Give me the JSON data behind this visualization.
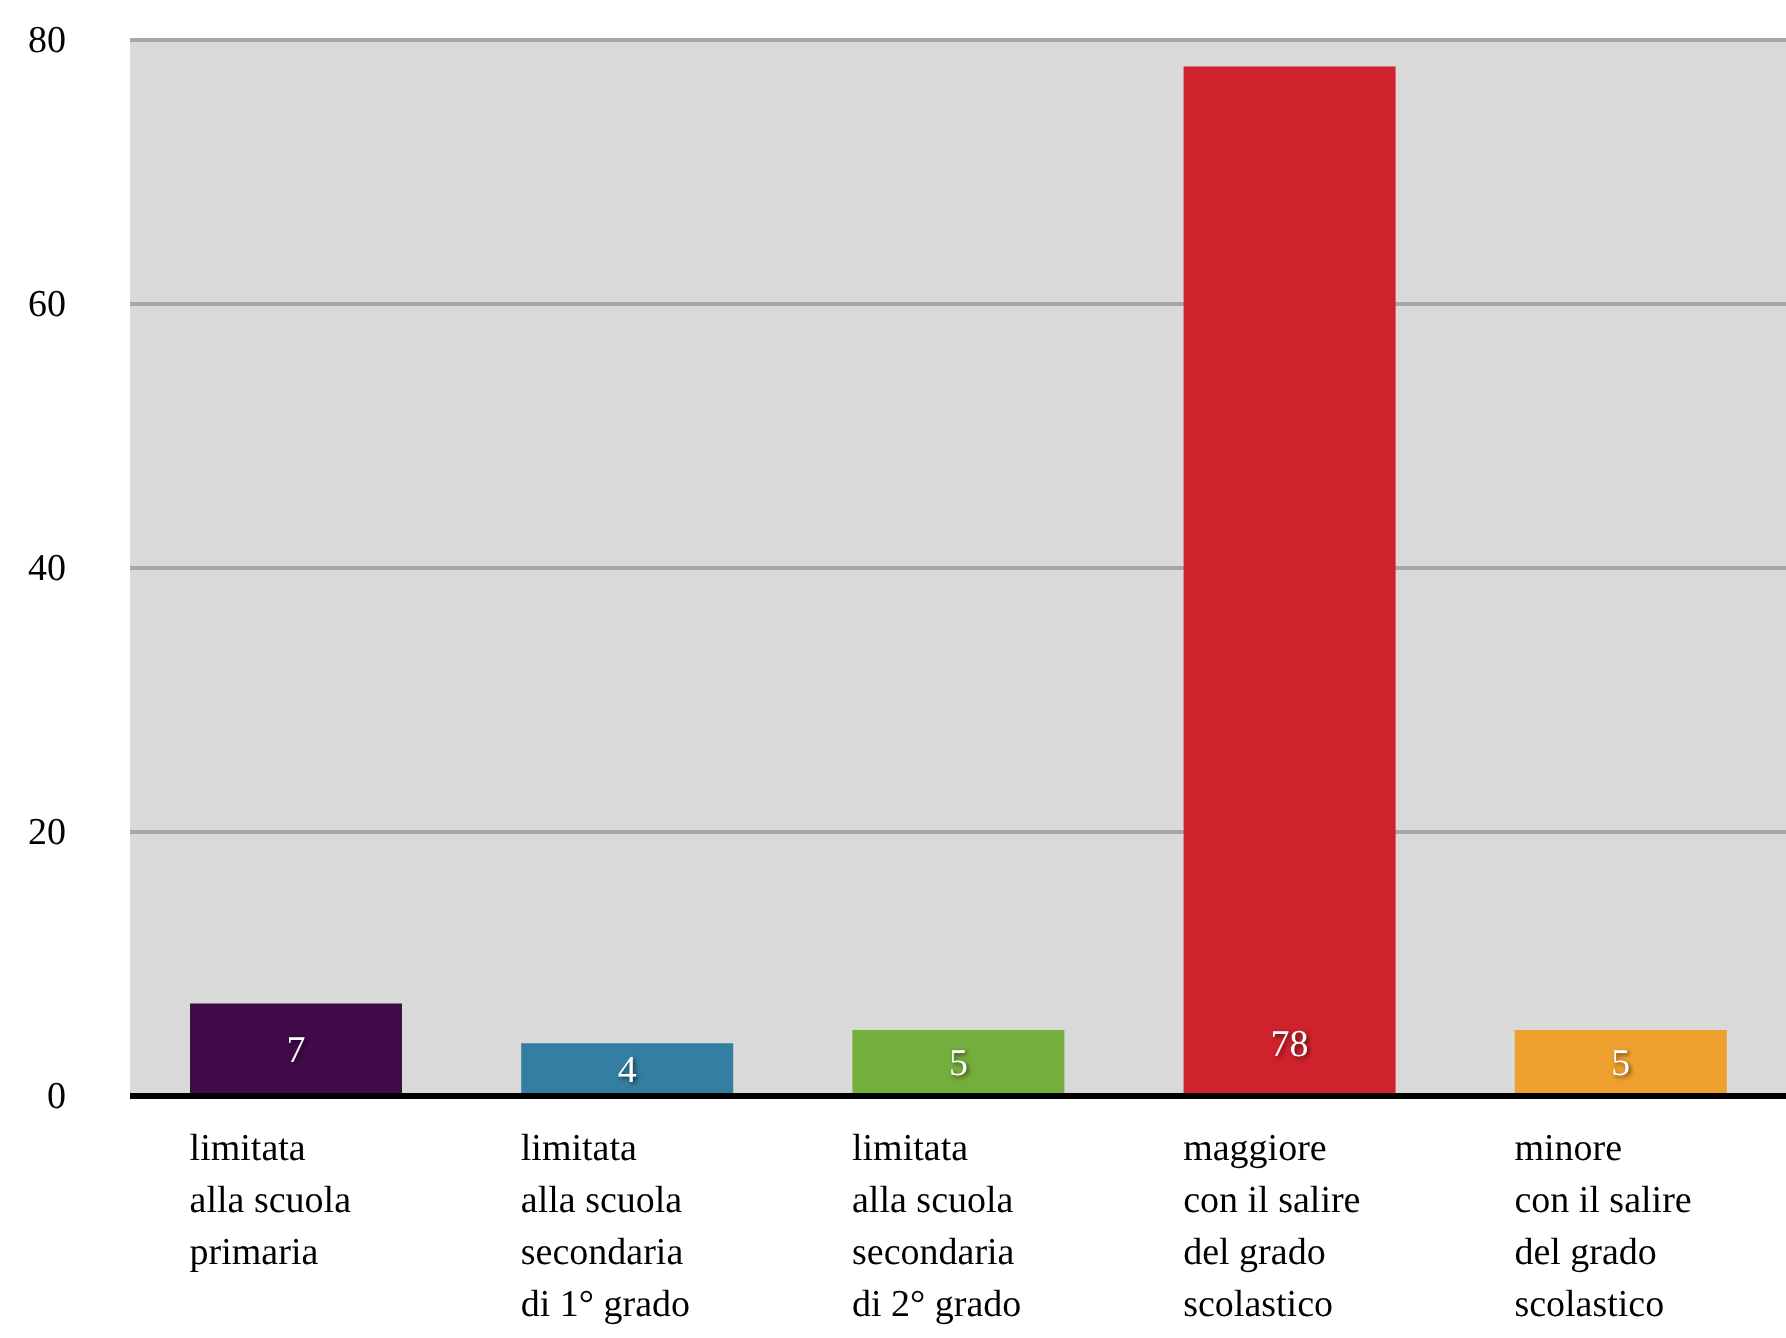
{
  "chart_data": {
    "type": "bar",
    "categories": [
      "limitata\nalla scuola\nprimaria",
      "limitata\nalla scuola\nsecondaria\ndi 1° grado",
      "limitata\nalla scuola\nsecondaria\ndi 2° grado",
      "maggiore\ncon il salire\ndel grado\nscolastico",
      "minore\ncon il salire\ndel grado\nscolastico"
    ],
    "values": [
      7,
      4,
      5,
      78,
      5
    ],
    "colors": [
      "#3f0a47",
      "#347ea1",
      "#74ae3c",
      "#d0222c",
      "#eea02f"
    ],
    "ylim": [
      0,
      80
    ],
    "yticks": [
      0,
      20,
      40,
      60,
      80
    ],
    "grid": "y",
    "data_labels": true
  }
}
